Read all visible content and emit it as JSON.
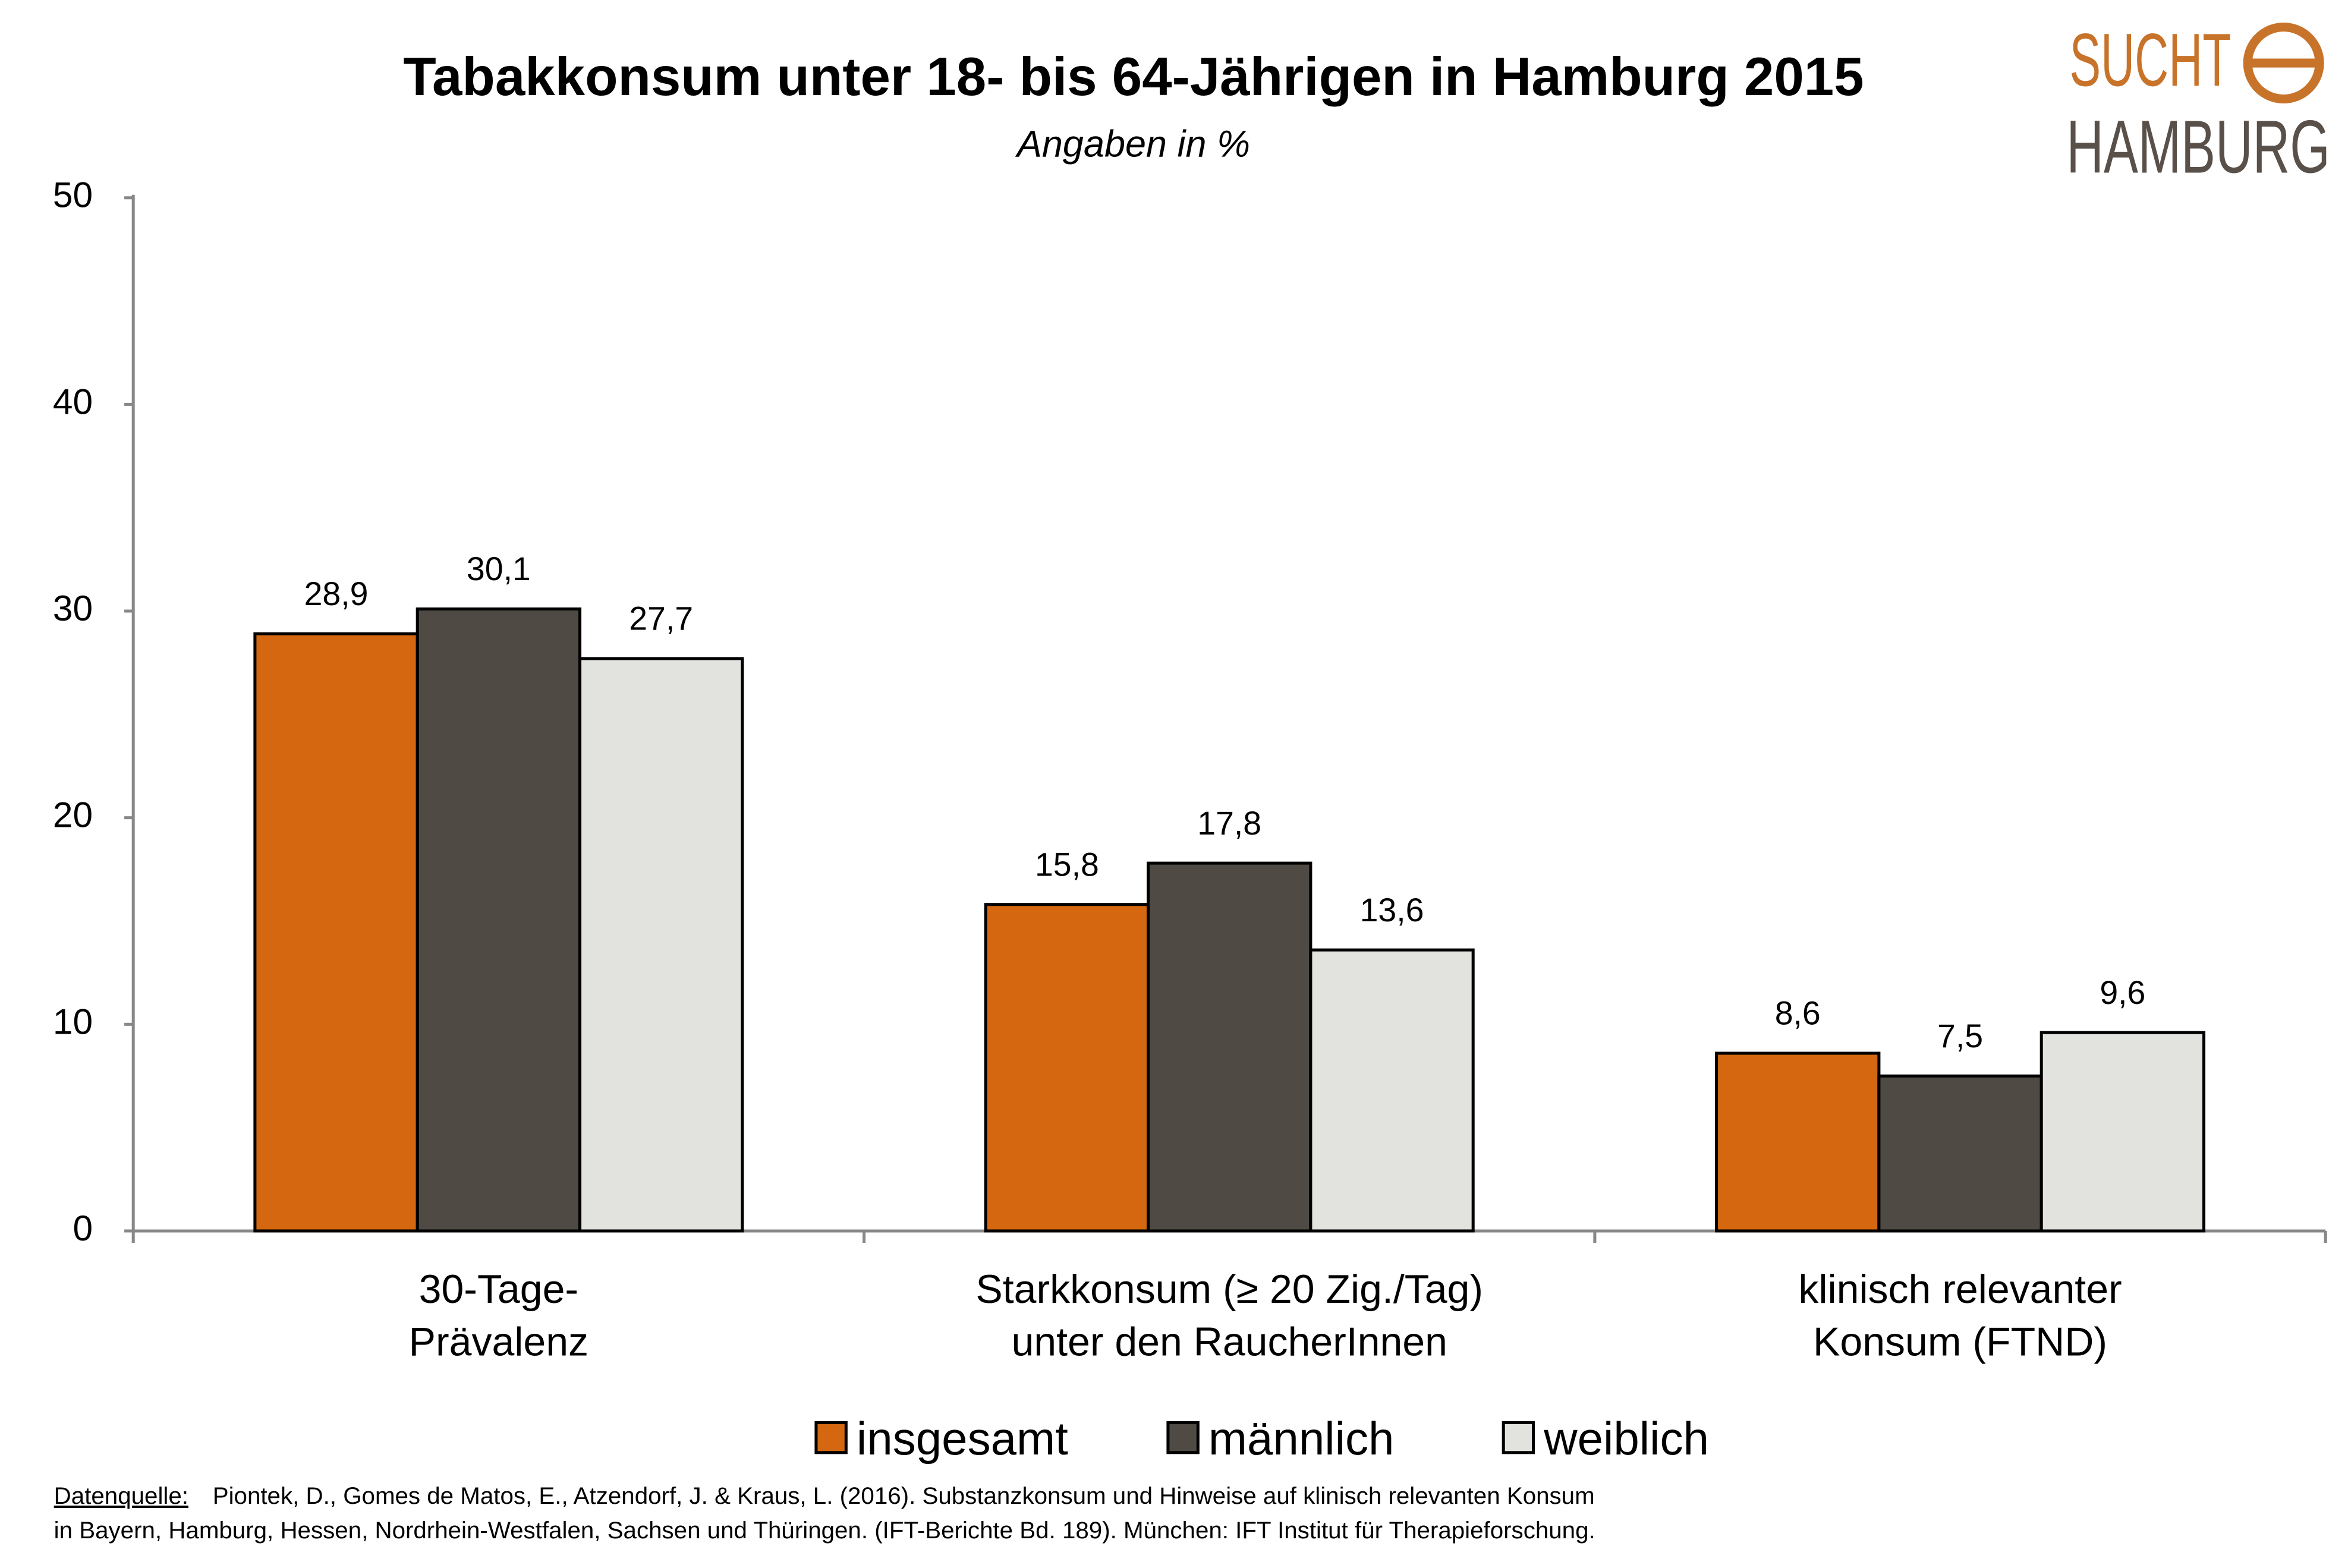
{
  "chart_data": {
    "type": "bar",
    "title": "Tabakkonsum unter 18- bis 64-Jährigen in Hamburg 2015",
    "subtitle": "Angaben in %",
    "categories": [
      [
        "30-Tage-",
        "Prävalenz"
      ],
      [
        "Starkkonsum (≥ 20 Zig./Tag)",
        "unter den RaucherInnen"
      ],
      [
        "klinisch relevanter",
        "Konsum (FTND)"
      ]
    ],
    "series": [
      {
        "name": "insgesamt",
        "color": "#d4670f",
        "values": [
          28.9,
          15.8,
          8.6
        ],
        "value_labels": [
          "28,9",
          "15,8",
          "8,6"
        ]
      },
      {
        "name": "männlich",
        "color": "#4f4a44",
        "values": [
          30.1,
          17.8,
          7.5
        ],
        "value_labels": [
          "30,1",
          "17,8",
          "7,5"
        ]
      },
      {
        "name": "weiblich",
        "color": "#e2e2de",
        "values": [
          27.7,
          13.6,
          9.6
        ],
        "value_labels": [
          "27,7",
          "13,6",
          "9,6"
        ]
      }
    ],
    "ylim": [
      0,
      50
    ],
    "yticks": [
      0,
      10,
      20,
      30,
      40,
      50
    ],
    "grid": false,
    "legend": "bottom"
  },
  "source": {
    "label": "Datenquelle:",
    "lines": [
      "Piontek, D., Gomes de Matos, E., Atzendorf, J. & Kraus, L. (2016). Substanzkonsum und Hinweise auf klinisch relevanten Konsum",
      "in Bayern, Hamburg, Hessen, Nordrhein-Westfalen, Sachsen und Thüringen. (IFT-Berichte Bd. 189). München: IFT Institut für Therapieforschung."
    ]
  },
  "logo": {
    "top": "SUCHT",
    "bottom": "HAMBURG"
  }
}
